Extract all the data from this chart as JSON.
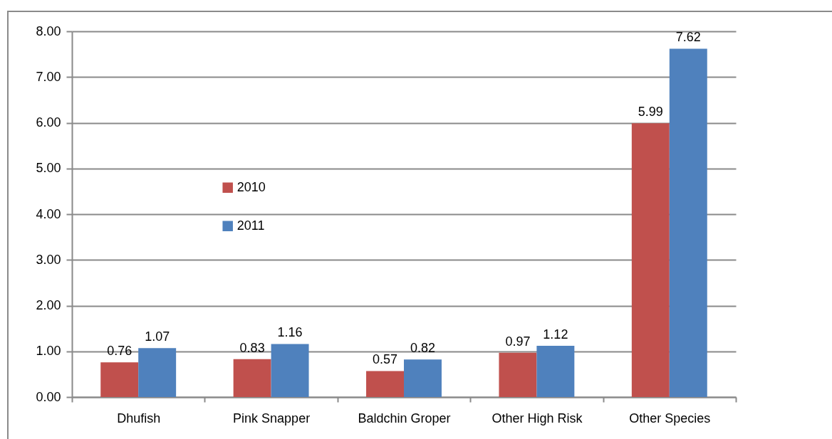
{
  "chart_data": {
    "type": "bar",
    "categories": [
      "Dhufish",
      "Pink Snapper",
      "Baldchin Groper",
      "Other High Risk",
      "Other Species"
    ],
    "series": [
      {
        "name": "2010",
        "color": "#c0504d",
        "values": [
          0.76,
          0.83,
          0.57,
          0.97,
          5.99
        ]
      },
      {
        "name": "2011",
        "color": "#4f81bd",
        "values": [
          1.07,
          1.16,
          0.82,
          1.12,
          7.62
        ]
      }
    ],
    "ylim": [
      0,
      8
    ],
    "yticks": [
      {
        "value": 0,
        "label": "0.00"
      },
      {
        "value": 1,
        "label": "1.00"
      },
      {
        "value": 2,
        "label": "2.00"
      },
      {
        "value": 3,
        "label": "3.00"
      },
      {
        "value": 4,
        "label": "4.00"
      },
      {
        "value": 5,
        "label": "5.00"
      },
      {
        "value": 6,
        "label": "6.00"
      },
      {
        "value": 7,
        "label": "7.00"
      },
      {
        "value": 8,
        "label": "8.00"
      }
    ],
    "grid": "y",
    "legend": "left",
    "data_labels": true
  }
}
